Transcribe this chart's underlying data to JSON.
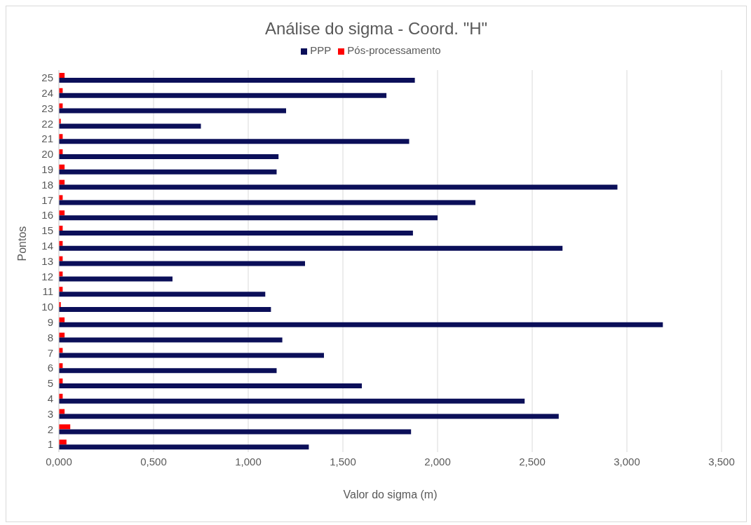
{
  "chart_data": {
    "type": "bar",
    "orientation": "horizontal",
    "title": "Análise do sigma - Coord. \"H\"",
    "xlabel": "Valor do sigma (m)",
    "ylabel": "Pontos",
    "categories": [
      "25",
      "24",
      "23",
      "22",
      "21",
      "20",
      "19",
      "18",
      "17",
      "16",
      "15",
      "14",
      "13",
      "12",
      "11",
      "10",
      "9",
      "8",
      "7",
      "6",
      "5",
      "4",
      "3",
      "2",
      "1"
    ],
    "series": [
      {
        "name": "Pós-processamento",
        "color": "#ff0000",
        "values": [
          0.03,
          0.02,
          0.02,
          0.01,
          0.02,
          0.02,
          0.03,
          0.03,
          0.02,
          0.03,
          0.02,
          0.02,
          0.02,
          0.02,
          0.02,
          0.01,
          0.03,
          0.03,
          0.02,
          0.02,
          0.02,
          0.02,
          0.03,
          0.06,
          0.04
        ]
      },
      {
        "name": "PPP",
        "color": "#0b0f59",
        "values": [
          1.88,
          1.73,
          1.2,
          0.75,
          1.85,
          1.16,
          1.15,
          2.95,
          2.2,
          2.0,
          1.87,
          2.66,
          1.3,
          0.6,
          1.09,
          1.12,
          3.19,
          1.18,
          1.4,
          1.15,
          1.6,
          2.46,
          2.64,
          1.86,
          1.32
        ]
      }
    ],
    "xlim": [
      0,
      3.5
    ],
    "xticks": [
      {
        "value": 0,
        "label": "0,000"
      },
      {
        "value": 0.5,
        "label": "0,500"
      },
      {
        "value": 1,
        "label": "1,000"
      },
      {
        "value": 1.5,
        "label": "1,500"
      },
      {
        "value": 2,
        "label": "2,000"
      },
      {
        "value": 2.5,
        "label": "2,500"
      },
      {
        "value": 3,
        "label": "3,000"
      },
      {
        "value": 3.5,
        "label": "3,500"
      }
    ],
    "grid": "x",
    "legend": "top"
  }
}
